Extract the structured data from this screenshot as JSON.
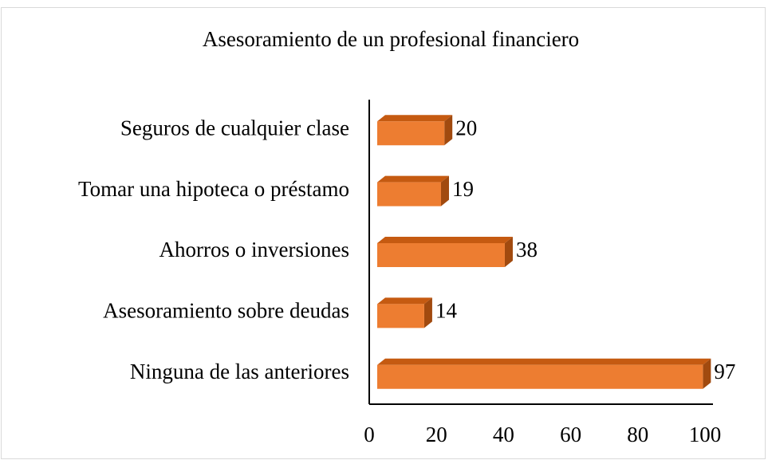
{
  "chart_data": {
    "type": "bar",
    "orientation": "horizontal",
    "title": "Asesoramiento de un profesional financiero",
    "categories": [
      "Seguros de cualquier clase",
      "Tomar una hipoteca o préstamo",
      "Ahorros o inversiones",
      "Asesoramiento sobre deudas",
      "Ninguna de las anteriores"
    ],
    "values": [
      20,
      19,
      38,
      14,
      97
    ],
    "color": "#ed7d31",
    "xlim": [
      0,
      100
    ],
    "xticks": [
      0,
      20,
      40,
      60,
      80,
      100
    ],
    "grid": false
  }
}
